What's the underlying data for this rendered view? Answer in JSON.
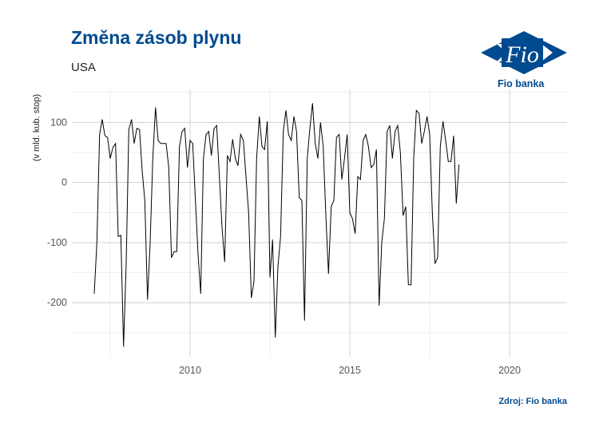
{
  "header": {
    "title": "Změna zásob plynu",
    "subtitle": "USA"
  },
  "logo": {
    "mark_text": "Fio",
    "bank_name": "Fio banka",
    "color": "#004a8f"
  },
  "footer": {
    "source": "Zdroj: Fio banka"
  },
  "chart_data": {
    "type": "line",
    "title": "Změna zásob plynu",
    "subtitle": "USA",
    "xlabel": "",
    "ylabel": "(v mld. kub. stop)",
    "xlim": [
      2006.3,
      2021.8
    ],
    "ylim": [
      -290,
      155
    ],
    "x_ticks": [
      2010,
      2015,
      2020
    ],
    "x_tick_labels": [
      "2010",
      "2015",
      "2020"
    ],
    "y_ticks": [
      100,
      0,
      -100,
      -200
    ],
    "y_tick_labels": [
      "100",
      "0",
      "-100",
      "-200"
    ],
    "grid": true,
    "line_color": "#000000",
    "series": [
      {
        "x_start": 2007.0,
        "x_step": 0.0833333,
        "values": [
          -185,
          -100,
          80,
          105,
          78,
          75,
          40,
          58,
          65,
          -90,
          -88,
          -273,
          -135,
          88,
          105,
          65,
          90,
          88,
          20,
          -30,
          -195,
          -100,
          40,
          125,
          70,
          65,
          65,
          65,
          25,
          -125,
          -115,
          -115,
          60,
          85,
          90,
          25,
          70,
          65,
          -30,
          -120,
          -185,
          40,
          80,
          85,
          45,
          90,
          95,
          10,
          -75,
          -132,
          45,
          35,
          72,
          40,
          28,
          80,
          70,
          10,
          -50,
          -192,
          -165,
          40,
          110,
          60,
          55,
          102,
          -158,
          -95,
          -258,
          -140,
          -90,
          85,
          120,
          80,
          70,
          110,
          85,
          -25,
          -30,
          -230,
          40,
          90,
          132,
          65,
          40,
          100,
          60,
          -55,
          -152,
          -40,
          -30,
          75,
          80,
          5,
          40,
          80,
          -50,
          -60,
          -85,
          10,
          5,
          70,
          80,
          60,
          25,
          30,
          55,
          -205,
          -100,
          -60,
          85,
          95,
          40,
          85,
          95,
          50,
          -55,
          -40,
          -170,
          -170,
          40,
          120,
          115,
          65,
          85,
          110,
          80,
          -50,
          -135,
          -125,
          60,
          102,
          70,
          35,
          35,
          78,
          -35,
          30
        ]
      }
    ]
  }
}
